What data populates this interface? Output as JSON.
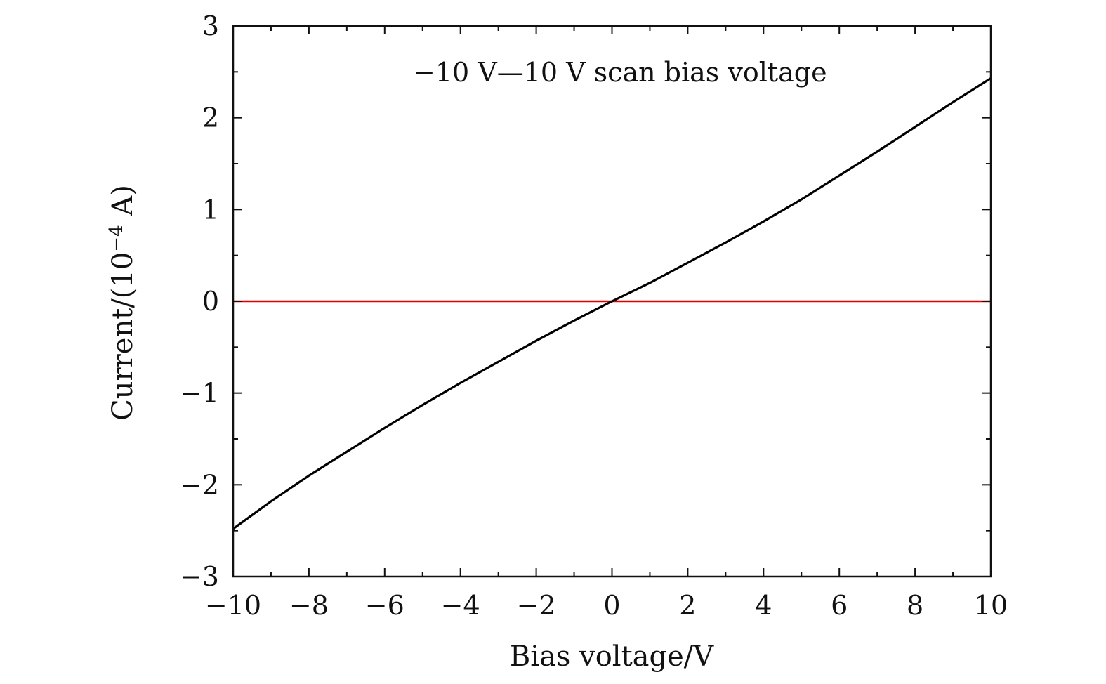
{
  "chart_data": {
    "type": "line",
    "title": "",
    "xlabel": "Bias voltage/V",
    "ylabel_main": "Current/(10",
    "ylabel_exp": "−4",
    "ylabel_end": " A)",
    "annotation": "−10 V—10 V scan bias voltage",
    "xlim": [
      -10,
      10
    ],
    "ylim": [
      -3,
      3
    ],
    "x_ticks": [
      -10,
      -8,
      -6,
      -4,
      -2,
      0,
      2,
      4,
      6,
      8,
      10
    ],
    "x_tick_labels": [
      "−10",
      "−8",
      "−6",
      "−4",
      "−2",
      "0",
      "2",
      "4",
      "6",
      "8",
      "10"
    ],
    "y_ticks": [
      -3,
      -2,
      -1,
      0,
      1,
      2,
      3
    ],
    "y_tick_labels": [
      "−3",
      "−2",
      "−1",
      "0",
      "1",
      "2",
      "3"
    ],
    "grid": false,
    "colors": {
      "curve": "#000000",
      "zero_line": "#e00000"
    },
    "series": [
      {
        "x": [
          -10,
          -9,
          -8,
          -7,
          -6,
          -5,
          -4,
          -3,
          -2,
          -1,
          0,
          1,
          2,
          3,
          4,
          5,
          6,
          7,
          8,
          9,
          10
        ],
        "y": [
          -2.48,
          -2.18,
          -1.9,
          -1.64,
          -1.38,
          -1.13,
          -0.89,
          -0.66,
          -0.43,
          -0.21,
          0.0,
          0.2,
          0.42,
          0.64,
          0.87,
          1.11,
          1.37,
          1.63,
          1.9,
          2.17,
          2.43
        ]
      }
    ],
    "reference_lines": [
      {
        "y": 0
      }
    ]
  }
}
